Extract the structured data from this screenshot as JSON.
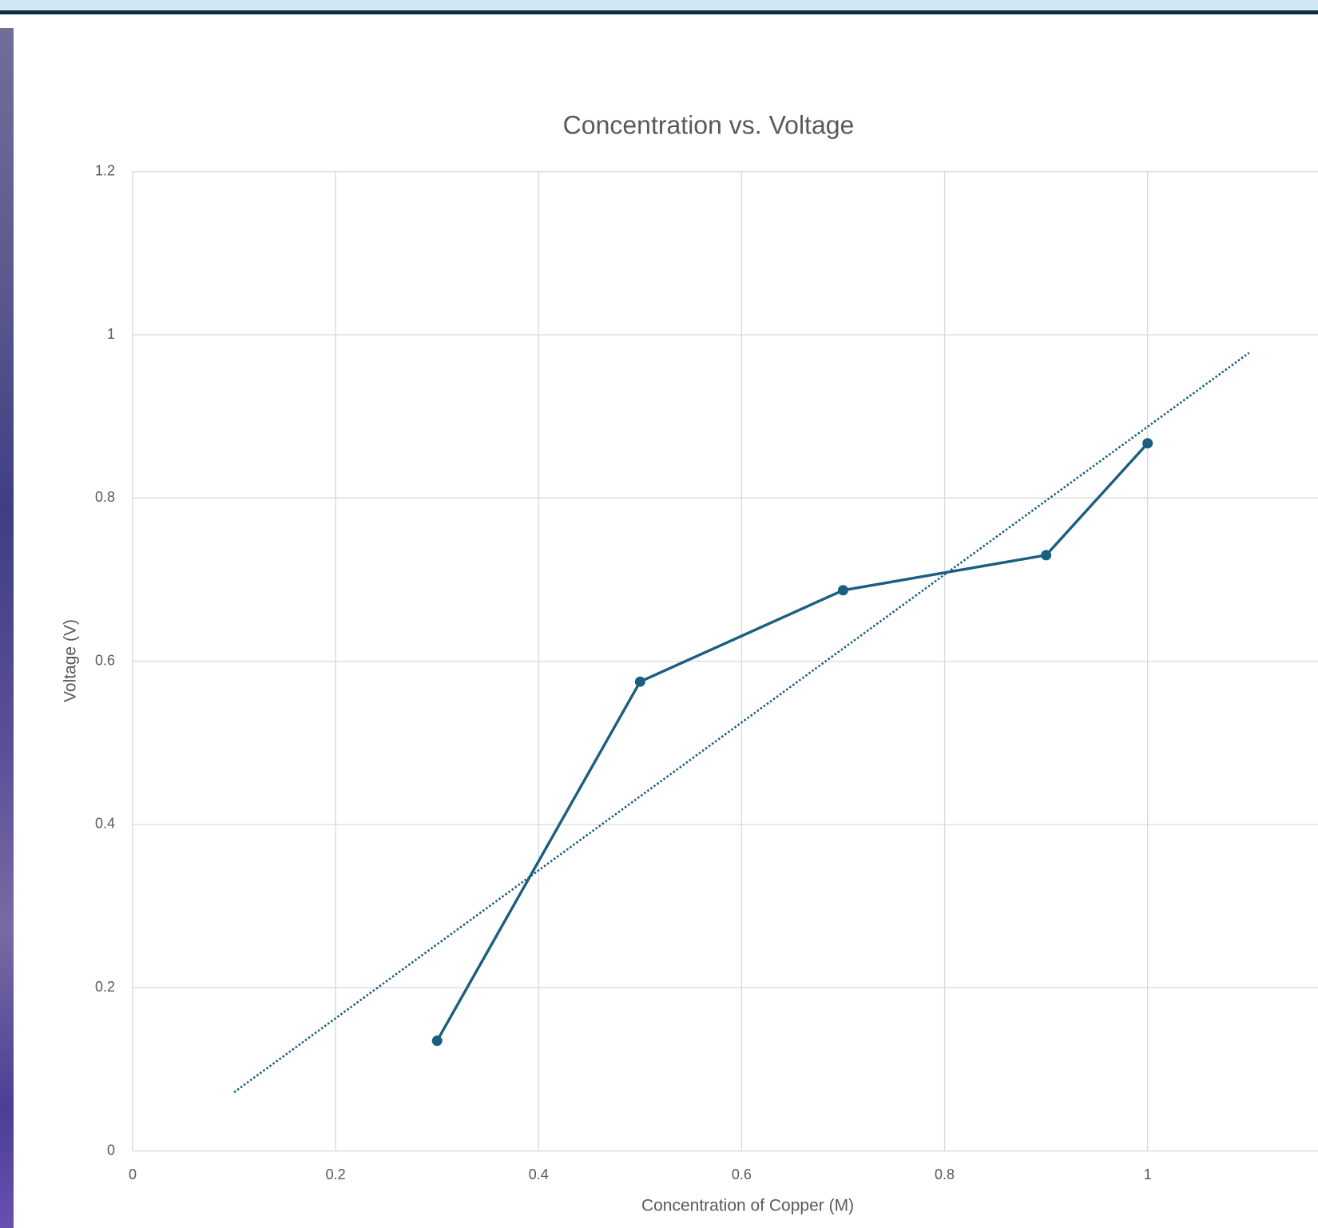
{
  "chart_data": {
    "type": "line",
    "title": "Concentration vs. Voltage",
    "x_label": "Concentration of Copper (M)",
    "y_label": "Voltage (V)",
    "x": [
      0.3,
      0.5,
      0.7,
      0.9,
      1.0
    ],
    "series": [
      {
        "color": "#1a5e80",
        "values": [
          0.135,
          0.575,
          0.687,
          0.73,
          0.867
        ]
      }
    ],
    "trendline": {
      "type": "linear",
      "style": "dotted",
      "color": "#1a5e80",
      "x": [
        0.1,
        1.1
      ],
      "values": [
        0.072,
        0.978
      ]
    },
    "xlim": [
      0,
      1.2
    ],
    "xticks": [
      0,
      0.2,
      0.4,
      0.6,
      0.8,
      1
    ],
    "ylim": [
      0,
      1.2
    ],
    "yticks": [
      0,
      0.2,
      0.4,
      0.6,
      0.8,
      1,
      1.2
    ],
    "grid": true
  }
}
